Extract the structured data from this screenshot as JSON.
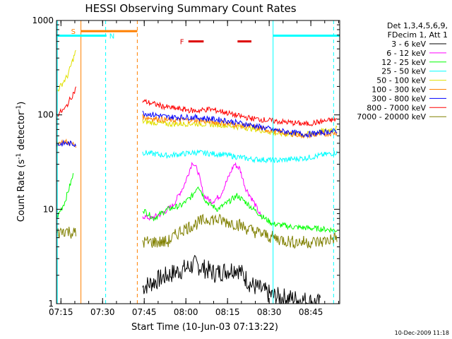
{
  "chart_data": {
    "type": "line",
    "title": "HESSI Observing Summary Count Rates",
    "xlabel": "Start Time (10-Jun-03 07:13:22)",
    "ylabel_main": "Count Rate (s",
    "ylabel_sup1": "-1",
    "ylabel_mid": " detector",
    "ylabel_sup2": "-1",
    "ylabel_end": ")",
    "y_scale": "log",
    "ylim": [
      1,
      1000
    ],
    "xlim_minutes": [
      0,
      102
    ],
    "x_ticks": [
      {
        "label": "07:15",
        "minute": 1.6
      },
      {
        "label": "07:30",
        "minute": 16.6
      },
      {
        "label": "07:45",
        "minute": 31.6
      },
      {
        "label": "08:00",
        "minute": 46.6
      },
      {
        "label": "08:15",
        "minute": 61.6
      },
      {
        "label": "08:30",
        "minute": 76.6
      },
      {
        "label": "08:45",
        "minute": 91.6
      }
    ],
    "y_ticks": [
      {
        "label": "1",
        "value": 1
      },
      {
        "label": "10",
        "value": 10
      },
      {
        "label": "100",
        "value": 100
      },
      {
        "label": "1000",
        "value": 1000
      }
    ],
    "legend_header": [
      "Det 1,3,4,5,6,9,",
      "FDecim 1, Att 1"
    ],
    "series": [
      {
        "name": "3 - 6 keV",
        "color": "#000000",
        "x": [
          31,
          40,
          50,
          57,
          65,
          70,
          78,
          88,
          95
        ],
        "y": [
          1.5,
          2,
          2.6,
          2.1,
          2.4,
          1.6,
          1.2,
          1.1,
          1.0
        ]
      },
      {
        "name": "6 - 12 keV",
        "color": "#ff00ff",
        "x": [
          31,
          34,
          38,
          42,
          46,
          49,
          51,
          53,
          56,
          59,
          62,
          64,
          66,
          68,
          71,
          74
        ],
        "y": [
          8.5,
          8,
          9,
          11,
          18,
          32,
          25,
          14,
          12,
          14,
          22,
          30,
          27,
          17,
          12,
          8
        ]
      },
      {
        "name": "12 - 25 keV",
        "color": "#00ff00",
        "x": [
          0,
          3,
          6,
          31,
          35,
          40,
          45,
          49,
          51,
          54,
          58,
          62,
          65,
          68,
          71,
          75,
          78,
          85,
          95,
          101
        ],
        "y": [
          8,
          12,
          23,
          10,
          8,
          10,
          11,
          14,
          18,
          12,
          10,
          12,
          14,
          12,
          10,
          8,
          7,
          6.5,
          6.2,
          6
        ]
      },
      {
        "name": "25 - 50 keV",
        "color": "#00ffff",
        "x": [
          31,
          40,
          50,
          60,
          70,
          80,
          90,
          101
        ],
        "y": [
          40,
          37,
          40,
          38,
          34,
          33,
          35,
          40
        ]
      },
      {
        "name": "50 - 100 keV",
        "color": "#e0e000",
        "x": [
          0,
          4,
          7,
          31,
          40,
          50,
          60,
          70,
          80,
          90,
          101
        ],
        "y": [
          175,
          260,
          480,
          85,
          80,
          81,
          78,
          72,
          63,
          62,
          72
        ]
      },
      {
        "name": "100 - 300 keV",
        "color": "#ff8000",
        "x": [
          0,
          3,
          7,
          31,
          40,
          50,
          60,
          70,
          80,
          90,
          101
        ],
        "y": [
          50,
          52,
          48,
          95,
          88,
          88,
          82,
          75,
          66,
          60,
          65
        ]
      },
      {
        "name": "300 - 800 keV",
        "color": "#0000ff",
        "x": [
          0,
          3,
          7,
          31,
          40,
          50,
          60,
          70,
          80,
          90,
          101
        ],
        "y": [
          48,
          50,
          49,
          105,
          95,
          94,
          88,
          78,
          68,
          62,
          68
        ]
      },
      {
        "name": "800 - 7000 keV",
        "color": "#ff0000",
        "x": [
          0,
          3,
          7,
          31,
          40,
          50,
          55,
          60,
          65,
          70,
          80,
          90,
          101
        ],
        "y": [
          100,
          115,
          190,
          140,
          120,
          110,
          115,
          108,
          98,
          92,
          85,
          80,
          90
        ]
      },
      {
        "name": "7000 - 20000 keV",
        "color": "#808000",
        "x": [
          0,
          3,
          7,
          31,
          40,
          45,
          50,
          55,
          60,
          65,
          70,
          78,
          85,
          95,
          101
        ],
        "y": [
          5.5,
          6,
          5.5,
          4.5,
          4.5,
          6,
          7,
          8,
          7.5,
          7,
          6,
          5,
          4.5,
          4.5,
          5
        ]
      }
    ],
    "attenuator_markers": [
      {
        "label": "S",
        "color": "#ff8000",
        "x_start": 8.8,
        "x_end": 29.1,
        "y": 770
      },
      {
        "label": "N",
        "color": "#00ffff",
        "x_start": 0,
        "x_end": 18,
        "y": 690
      },
      {
        "label": "",
        "color": "#00ffff",
        "x_start": 78,
        "x_end": 102,
        "y": 690
      }
    ],
    "flare_markers": {
      "label": "F",
      "color": "#dd0000",
      "segments": [
        [
          47.5,
          53
        ],
        [
          65.2,
          70.2
        ]
      ],
      "y": 600
    },
    "vertical_lines": [
      {
        "x": 0.3,
        "color": "#00ffff",
        "style": "solid"
      },
      {
        "x": 8.8,
        "color": "#ff8000",
        "style": "solid"
      },
      {
        "x": 17.7,
        "color": "#00ffff",
        "style": "dashed"
      },
      {
        "x": 29.1,
        "color": "#ff8000",
        "style": "dashed"
      },
      {
        "x": 78.0,
        "color": "#00ffff",
        "style": "solid"
      },
      {
        "x": 99.8,
        "color": "#00ffff",
        "style": "dashed"
      }
    ],
    "timestamp": "10-Dec-2009 11:18"
  }
}
